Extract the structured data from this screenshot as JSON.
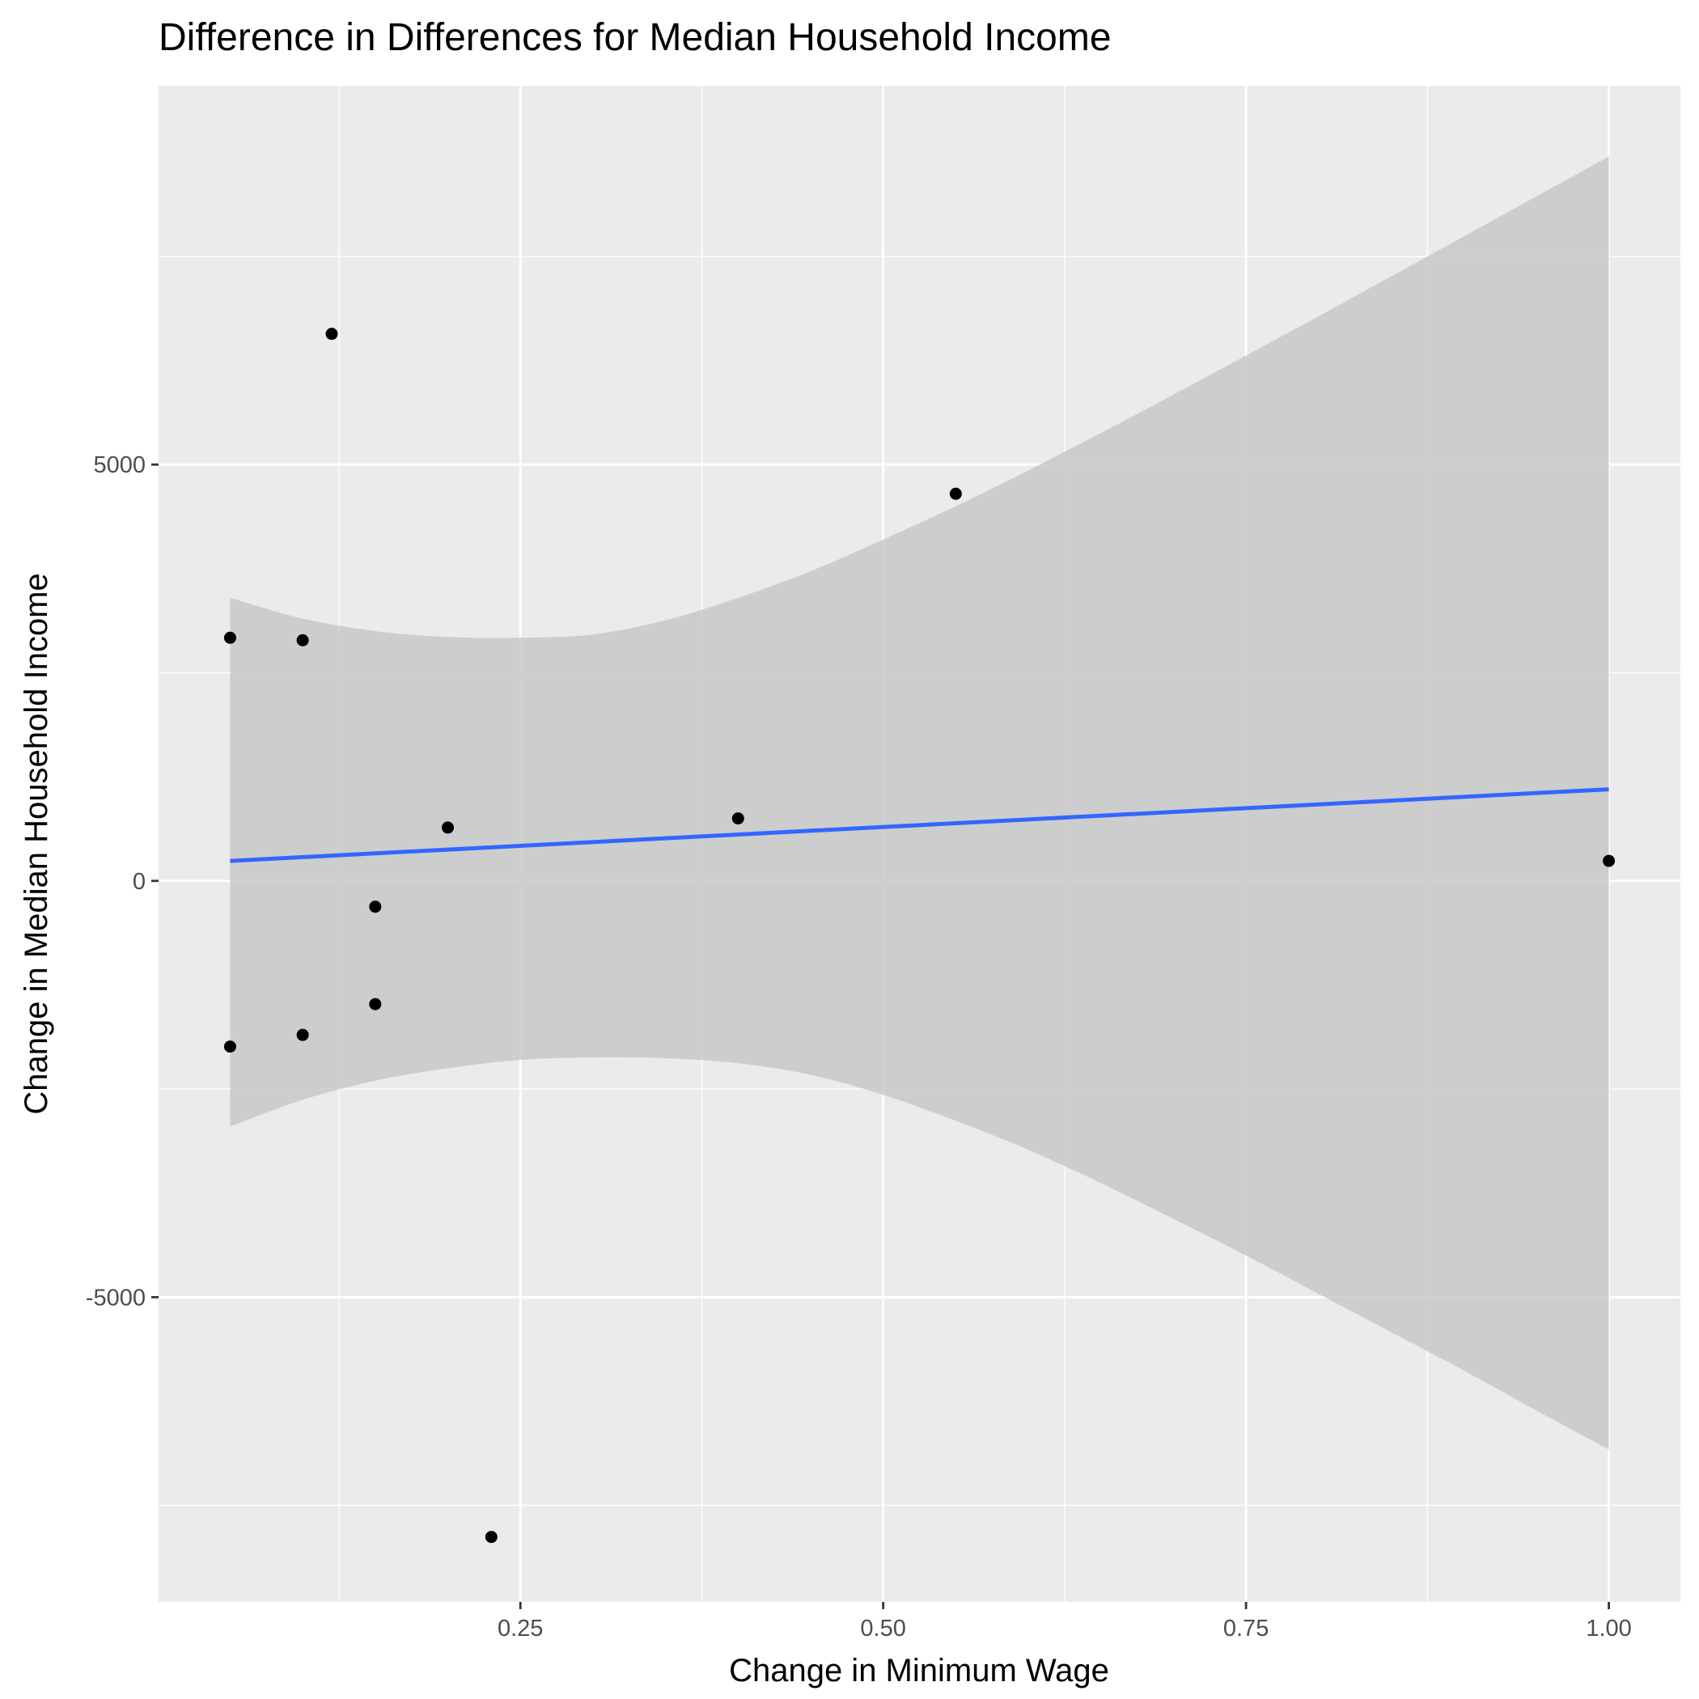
{
  "chart_data": {
    "type": "scatter",
    "title": "Difference in Differences for Median Household Income",
    "xlabel": "Change in Minimum Wage",
    "ylabel": "Change in Median Household Income",
    "xlim": [
      0.0007,
      1.0493
    ],
    "ylim": [
      -8660,
      9550
    ],
    "x_ticks": [
      {
        "value": 0.25,
        "label": "0.25"
      },
      {
        "value": 0.5,
        "label": "0.50"
      },
      {
        "value": 0.75,
        "label": "0.75"
      },
      {
        "value": 1.0,
        "label": "1.00"
      }
    ],
    "x_minor": [
      0.125,
      0.375,
      0.625,
      0.875
    ],
    "y_ticks": [
      {
        "value": 5000,
        "label": "5000"
      },
      {
        "value": 0,
        "label": "0"
      },
      {
        "value": -5000,
        "label": "-5000"
      }
    ],
    "y_minor": [
      7500,
      2500,
      -2500,
      -7500
    ],
    "grid": true,
    "points": [
      {
        "x": 0.05,
        "y": 2920
      },
      {
        "x": 0.1,
        "y": 2890
      },
      {
        "x": 0.12,
        "y": 6570
      },
      {
        "x": 0.05,
        "y": -1990
      },
      {
        "x": 0.1,
        "y": -1850
      },
      {
        "x": 0.15,
        "y": -310
      },
      {
        "x": 0.15,
        "y": -1480
      },
      {
        "x": 0.2,
        "y": 640
      },
      {
        "x": 0.23,
        "y": -7880
      },
      {
        "x": 0.4,
        "y": 750
      },
      {
        "x": 0.55,
        "y": 4650
      },
      {
        "x": 1.0,
        "y": 240
      }
    ],
    "fit_line": [
      {
        "x": 0.05,
        "y": 240
      },
      {
        "x": 1.0,
        "y": 1100
      }
    ],
    "confidence_band": {
      "x": [
        0.05,
        0.1,
        0.15,
        0.2,
        0.25,
        0.3,
        0.35,
        0.4,
        0.45,
        0.5,
        0.55,
        0.6,
        0.65,
        0.7,
        0.75,
        0.8,
        0.85,
        0.9,
        0.95,
        1.0
      ],
      "upper": [
        3400,
        3150,
        3000,
        2930,
        2920,
        2960,
        3130,
        3400,
        3720,
        4100,
        4500,
        4930,
        5380,
        5840,
        6310,
        6780,
        7260,
        7740,
        8220,
        8700
      ],
      "lower": [
        -2950,
        -2630,
        -2400,
        -2250,
        -2150,
        -2120,
        -2130,
        -2190,
        -2330,
        -2570,
        -2880,
        -3230,
        -3630,
        -4060,
        -4500,
        -4960,
        -5420,
        -5880,
        -6360,
        -6830
      ]
    },
    "colors": {
      "panel": "#ebebeb",
      "grid": "#ffffff",
      "band": "#c8c8c8",
      "line": "#3366ff",
      "point": "#000000"
    }
  }
}
